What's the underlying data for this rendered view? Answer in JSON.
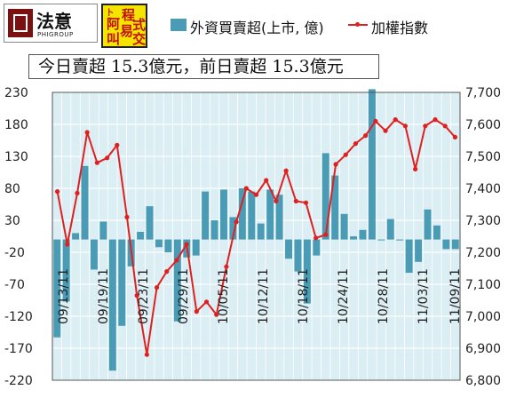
{
  "brand": {
    "logo1_name": "法意",
    "logo1_sub": "PHIGROUP",
    "logo2_chars": [
      "阿",
      "程",
      "式",
      "叫",
      "易",
      "交"
    ],
    "logo2_prefix": "卜"
  },
  "banner_text": "今日賣超 15.3億元，前日賣超 15.3億元",
  "legend": {
    "bar_label": "外資買賣超(上市, 億)",
    "line_label": "加權指數"
  },
  "colors": {
    "bar": "#4a9bb5",
    "line": "#e02020",
    "plot_bg": "#daeef3",
    "grid": "#ffffff",
    "axis_text": "#222222"
  },
  "chart_data": {
    "type": "bar+line",
    "title": "",
    "y_left_ticks": [
      "230",
      "180",
      "130",
      "80",
      "30",
      "-20",
      "-70",
      "-120",
      "-170",
      "-220"
    ],
    "y_right_ticks": [
      "7,700",
      "7,600",
      "7,500",
      "7,400",
      "7,300",
      "7,200",
      "7,100",
      "7,000",
      "6,900",
      "6,800"
    ],
    "ylim_left": [
      -220,
      230
    ],
    "ylim_right": [
      6800,
      7700
    ],
    "grid": true,
    "x_tick_labels": [
      {
        "index": 1,
        "label": "09/13/11"
      },
      {
        "index": 6,
        "label": "09/19/11"
      },
      {
        "index": 11,
        "label": "09/23/11"
      },
      {
        "index": 16,
        "label": "09/29/11"
      },
      {
        "index": 21,
        "label": "10/05/11"
      },
      {
        "index": 26,
        "label": "10/12/11"
      },
      {
        "index": 31,
        "label": "10/18/11"
      },
      {
        "index": 36,
        "label": "10/24/11"
      },
      {
        "index": 41,
        "label": "10/28/11"
      },
      {
        "index": 46,
        "label": "11/03/11"
      },
      {
        "index": 50,
        "label": "11/09/11"
      }
    ],
    "series": [
      {
        "name": "外資買賣超(上市, 億)",
        "kind": "bar",
        "values": [
          -153,
          -97,
          10,
          115,
          -47,
          28,
          -205,
          -135,
          -42,
          12,
          52,
          -12,
          -20,
          -128,
          -28,
          -25,
          75,
          30,
          78,
          35,
          80,
          75,
          25,
          78,
          70,
          -30,
          -50,
          -100,
          -25,
          135,
          100,
          40,
          5,
          15,
          235,
          0,
          32,
          0,
          -52,
          -35,
          47,
          22,
          -15,
          -15
        ],
        "x_index": [
          0,
          1,
          2,
          3,
          4,
          5,
          6,
          7,
          8,
          9,
          10,
          11,
          12,
          13,
          14,
          15,
          16,
          17,
          18,
          19,
          20,
          21,
          22,
          23,
          24,
          25,
          26,
          27,
          28,
          29,
          30,
          31,
          32,
          33,
          34,
          35,
          36,
          37,
          38,
          39,
          40,
          41,
          42,
          43
        ]
      },
      {
        "name": "加權指數",
        "kind": "line",
        "values": [
          7390,
          7225,
          7385,
          7575,
          7480,
          7495,
          7535,
          7310,
          7065,
          6880,
          7090,
          7140,
          7175,
          7225,
          7015,
          7045,
          7005,
          7155,
          7295,
          7400,
          7380,
          7425,
          7360,
          7455,
          7360,
          7355,
          7245,
          7255,
          7475,
          7505,
          7540,
          7565,
          7610,
          7580,
          7615,
          7595,
          7460,
          7595,
          7615,
          7595,
          7560
        ],
        "x_index": [
          0,
          1,
          2,
          3,
          4,
          5,
          6,
          7,
          8,
          9,
          10,
          11,
          12,
          13,
          14,
          15,
          16,
          17,
          18,
          19,
          20,
          21,
          22,
          23,
          24,
          25,
          26,
          27,
          28,
          29,
          30,
          31,
          32,
          33,
          34,
          35,
          36,
          37,
          38,
          39,
          40
        ]
      }
    ]
  }
}
